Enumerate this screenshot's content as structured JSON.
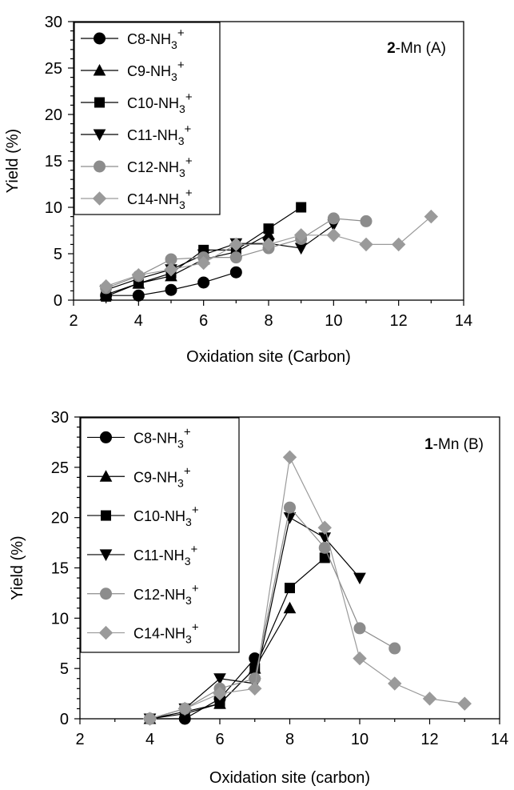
{
  "chart_data": [
    {
      "type": "line",
      "panel_label_bold": "2",
      "panel_label_rest": "-Mn (A)",
      "xlabel": "Oxidation site (Carbon)",
      "ylabel": "Yield (%)",
      "xlim": [
        2,
        14
      ],
      "ylim": [
        0,
        30
      ],
      "xticks": [
        2,
        4,
        6,
        8,
        10,
        12,
        14
      ],
      "yticks": [
        0,
        5,
        10,
        15,
        20,
        25,
        30
      ],
      "grid": false,
      "legend_position": "top-left",
      "series": [
        {
          "name": "C8-NH3+",
          "label_main": "C8-NH",
          "label_sub": "3",
          "label_sup": "+",
          "marker": "circle",
          "color": "#000000",
          "x": [
            3,
            4,
            5,
            6,
            7
          ],
          "y": [
            0.5,
            0.5,
            1.1,
            1.9,
            3.0
          ]
        },
        {
          "name": "C9-NH3+",
          "label_main": "C9-NH",
          "label_sub": "3",
          "label_sup": "+",
          "marker": "triangle-up",
          "color": "#000000",
          "x": [
            3,
            4,
            5,
            6,
            7,
            8
          ],
          "y": [
            0.6,
            1.8,
            2.6,
            4.4,
            5.2,
            7.1
          ]
        },
        {
          "name": "C10-NH3+",
          "label_main": "C10-NH",
          "label_sub": "3",
          "label_sup": "+",
          "marker": "square",
          "color": "#000000",
          "x": [
            3,
            4,
            5,
            6,
            7,
            8,
            9
          ],
          "y": [
            0.4,
            1.8,
            2.9,
            5.4,
            5.4,
            7.7,
            10.0
          ]
        },
        {
          "name": "C11-NH3+",
          "label_main": "C11-NH",
          "label_sub": "3",
          "label_sup": "+",
          "marker": "triangle-down",
          "color": "#000000",
          "x": [
            3,
            4,
            5,
            6,
            7,
            8,
            9,
            10
          ],
          "y": [
            1.1,
            2.3,
            3.3,
            4.9,
            6.1,
            6.1,
            5.6,
            8.1
          ]
        },
        {
          "name": "C12-NH3+",
          "label_main": "C12-NH",
          "label_sub": "3",
          "label_sup": "+",
          "marker": "circle",
          "color": "#8c8c8c",
          "x": [
            3,
            4,
            5,
            6,
            7,
            8,
            9,
            10,
            11
          ],
          "y": [
            1.3,
            2.6,
            4.4,
            4.6,
            4.6,
            5.6,
            6.6,
            8.8,
            8.5
          ]
        },
        {
          "name": "C14-NH3+",
          "label_main": "C14-NH",
          "label_sub": "3",
          "label_sup": "+",
          "marker": "diamond",
          "color": "#9a9a9a",
          "x": [
            3,
            4,
            5,
            6,
            7,
            8,
            9,
            10,
            11,
            12,
            13
          ],
          "y": [
            1.5,
            2.7,
            3.3,
            4.0,
            6.0,
            6.0,
            7.0,
            7.0,
            6.0,
            6.0,
            9.0
          ]
        }
      ]
    },
    {
      "type": "line",
      "panel_label_bold": "1",
      "panel_label_rest": "-Mn (B)",
      "xlabel": "Oxidation site (carbon)",
      "ylabel": "Yield (%)",
      "xlim": [
        2,
        14
      ],
      "ylim": [
        0,
        30
      ],
      "xticks": [
        2,
        4,
        6,
        8,
        10,
        12,
        14
      ],
      "yticks": [
        0,
        5,
        10,
        15,
        20,
        25,
        30
      ],
      "grid": false,
      "legend_position": "top-left",
      "series": [
        {
          "name": "C8-NH3+",
          "label_main": "C8-NH",
          "label_sub": "3",
          "label_sup": "+",
          "marker": "circle",
          "color": "#000000",
          "x": [
            4,
            5,
            6,
            7
          ],
          "y": [
            0,
            0,
            2.0,
            6.0
          ]
        },
        {
          "name": "C9-NH3+",
          "label_main": "C9-NH",
          "label_sub": "3",
          "label_sup": "+",
          "marker": "triangle-up",
          "color": "#000000",
          "x": [
            4,
            5,
            6,
            7,
            8
          ],
          "y": [
            0,
            0.5,
            1.5,
            5.0,
            11.0
          ]
        },
        {
          "name": "C10-NH3+",
          "label_main": "C10-NH",
          "label_sub": "3",
          "label_sup": "+",
          "marker": "square",
          "color": "#000000",
          "x": [
            4,
            5,
            6,
            7,
            8,
            9
          ],
          "y": [
            0,
            0.7,
            1.5,
            5.0,
            13.0,
            16.0
          ]
        },
        {
          "name": "C11-NH3+",
          "label_main": "C11-NH",
          "label_sub": "3",
          "label_sup": "+",
          "marker": "triangle-down",
          "color": "#000000",
          "x": [
            4,
            5,
            6,
            7,
            8,
            9,
            10
          ],
          "y": [
            0,
            1.0,
            4.0,
            3.5,
            20.0,
            18.0,
            14.0
          ]
        },
        {
          "name": "C12-NH3+",
          "label_main": "C12-NH",
          "label_sub": "3",
          "label_sup": "+",
          "marker": "circle",
          "color": "#8c8c8c",
          "x": [
            4,
            5,
            6,
            7,
            8,
            9,
            10,
            11
          ],
          "y": [
            0,
            1.0,
            3.0,
            4.0,
            21.0,
            17.0,
            9.0,
            7.0
          ]
        },
        {
          "name": "C14-NH3+",
          "label_main": "C14-NH",
          "label_sub": "3",
          "label_sup": "+",
          "marker": "diamond",
          "color": "#9a9a9a",
          "x": [
            4,
            5,
            6,
            7,
            8,
            9,
            10,
            11,
            12,
            13
          ],
          "y": [
            0,
            1.0,
            2.5,
            3.0,
            26.0,
            19.0,
            6.0,
            3.5,
            2.0,
            1.5
          ]
        }
      ]
    }
  ]
}
